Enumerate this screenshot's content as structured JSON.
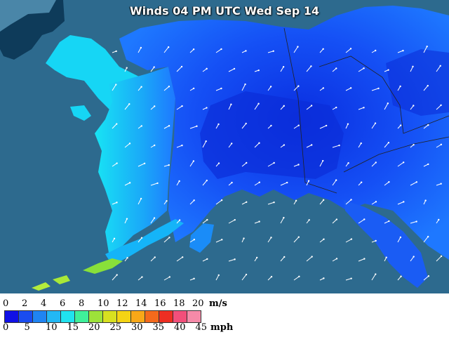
{
  "title": "Winds 04 PM UTC Wed Sep 14",
  "colors": {
    "ocean": "#2d6a8e",
    "wind_slow": "#0b35e8",
    "wind_medium": "#1e6cff",
    "wind_fast": "#16d6f5",
    "wind_fastest": "#88e03a"
  },
  "legend": {
    "ms_label": "m/s",
    "mph_label": "mph",
    "ms_ticks": [
      "0",
      "2",
      "4",
      "6",
      "8",
      "10",
      "12",
      "14",
      "16",
      "18",
      "20"
    ],
    "mph_ticks": [
      "0",
      "5",
      "10",
      "15",
      "20",
      "25",
      "30",
      "35",
      "40",
      "45"
    ],
    "colors": [
      "#1010e6",
      "#1a4cf0",
      "#1f84f2",
      "#22b8f4",
      "#20e2ef",
      "#3ff09a",
      "#9de23a",
      "#d8e020",
      "#f4d414",
      "#f8a818",
      "#f46a1c",
      "#ee2e22",
      "#f24f7a",
      "#f58aa8"
    ]
  }
}
